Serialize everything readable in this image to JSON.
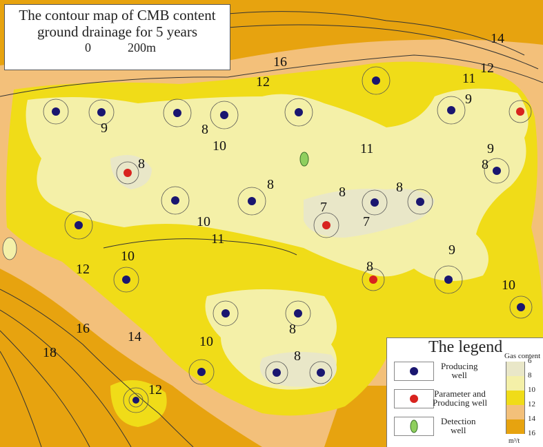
{
  "title": {
    "line1": "The contour map of CMB content",
    "line2": "ground drainage for 5 years",
    "scale_start": "0",
    "scale_end": "200m"
  },
  "colors": {
    "band_6_8": "#e9e7c8",
    "band_8_10": "#f4f0a8",
    "band_10_12": "#f0dc18",
    "band_12_14": "#f3c07a",
    "band_14_16": "#e7a30f",
    "producing_well": "#1a1670",
    "parameter_well": "#d8231e",
    "detection_well": "#8fcf5e"
  },
  "contour_labels": [
    "14",
    "12",
    "11",
    "16",
    "12",
    "9",
    "9",
    "10",
    "11",
    "9",
    "8",
    "8",
    "8",
    "8",
    "8",
    "8",
    "7",
    "7",
    "10",
    "11",
    "9",
    "10",
    "12",
    "8",
    "10",
    "16",
    "14",
    "18",
    "10",
    "8",
    "8",
    "12"
  ],
  "legend": {
    "title": "The legend",
    "gas_label": "Gas content",
    "items": [
      {
        "icon": "producing-well-icon",
        "line1": "Producing",
        "line2": "well"
      },
      {
        "icon": "parameter-well-icon",
        "line1": "Parameter and",
        "line2": "Producing well"
      },
      {
        "icon": "detection-well-icon",
        "line1": "Detection",
        "line2": "well"
      }
    ],
    "scale_values": [
      "6",
      "8",
      "10",
      "12",
      "14",
      "16"
    ],
    "unit": "m³/t"
  }
}
